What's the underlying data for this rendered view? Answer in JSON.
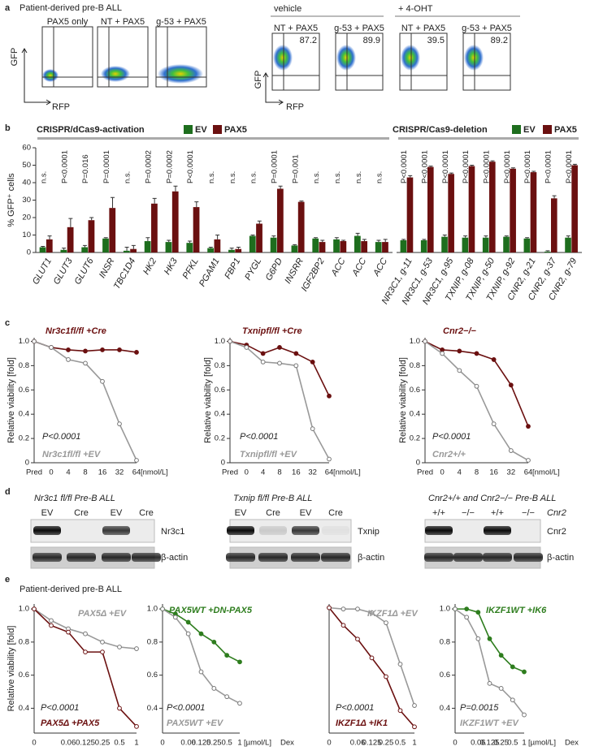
{
  "panel_a": {
    "label": "a",
    "title": "Patient-derived pre-B ALL",
    "y_axis": "GFP",
    "x_axis": "RFP",
    "left_plots": [
      "PAX5 only",
      "NT + PAX5",
      "g-53 + PAX5"
    ],
    "groups": [
      {
        "title": "vehicle",
        "plots": [
          {
            "title": "NT + PAX5",
            "value": 87.2
          },
          {
            "title": "g-53 + PAX5",
            "value": 89.9
          }
        ]
      },
      {
        "title": "+ 4-OHT",
        "plots": [
          {
            "title": "NT + PAX5",
            "value": 39.5
          },
          {
            "title": "g-53 + PAX5",
            "value": 89.2
          }
        ]
      }
    ]
  },
  "panel_labels": {
    "b": "b",
    "c": "c",
    "d": "d",
    "e": "e"
  },
  "chart_data": [
    {
      "type": "bar",
      "title": "CRISPR/dCas9-activation",
      "y_label": "% GFP⁺ cells",
      "categories": [
        "GLUT1",
        "GLUT3",
        "GLUT6",
        "INSR",
        "TBC1D4",
        "HK2",
        "HK3",
        "PFKL",
        "PGAM1",
        "FBP1",
        "PYGL",
        "G6PD",
        "INSRR",
        "IGF2BP2",
        "ACC",
        "ACC",
        "ACC"
      ],
      "annotations": [
        "n.s.",
        "P<0.0001",
        "P=0.016",
        "P=0.0001",
        "n.s.",
        "P=0.0002",
        "P=0.0002",
        "P<0.0001",
        "n.s.",
        "n.s.",
        "n.s.",
        "P=0.0001",
        "P=0.001",
        "n.s.",
        "n.s.",
        "n.s.",
        "n.s."
      ],
      "series": [
        {
          "name": "EV",
          "color": "#1e6e1e",
          "values": [
            3,
            1.5,
            3,
            8,
            1,
            6.5,
            6,
            5.5,
            2.5,
            1.5,
            9.5,
            8.5,
            4,
            8,
            7.5,
            9.5,
            6
          ],
          "errors": [
            0.5,
            1,
            1,
            0.5,
            2,
            2,
            1,
            1,
            0.5,
            1,
            0.5,
            1,
            0.5,
            0.5,
            1,
            1.5,
            1
          ]
        },
        {
          "name": "PAX5",
          "color": "#6b1010",
          "values": [
            7.5,
            14.5,
            18.5,
            25.5,
            2,
            28,
            35,
            26,
            7.5,
            2,
            16.5,
            36.5,
            29,
            6,
            6.5,
            6.5,
            6
          ],
          "errors": [
            2,
            5,
            1.5,
            6,
            2,
            3,
            3,
            3,
            2.5,
            1,
            1.5,
            1.5,
            0.5,
            1,
            0.5,
            1,
            1.5
          ]
        }
      ],
      "ylim": [
        0,
        60
      ],
      "yticks": [
        0,
        10,
        20,
        30,
        40,
        50,
        60
      ]
    },
    {
      "type": "bar",
      "title": "CRISPR/Cas9-deletion",
      "categories": [
        "NR3C1, g-11",
        "NR3C1, g-53",
        "NR3C1, g-95",
        "TXNIP, g-08",
        "TXNIP, g-50",
        "TXNIP, g-92",
        "CNR2, g-21",
        "CNR2, g-37",
        "CNR2, g-79"
      ],
      "annotations": [
        "P<0.0001",
        "P<0.0001",
        "P<0.0001",
        "P<0.0001",
        "P<0.0001",
        "P<0.0001",
        "P<0.0001",
        "P<0.0001",
        "P<0.0001"
      ],
      "series": [
        {
          "name": "EV",
          "color": "#1e6e1e",
          "values": [
            7,
            7,
            9,
            8.5,
            8.5,
            9,
            8,
            0.5,
            8.5
          ],
          "errors": [
            0.5,
            0.5,
            1,
            1,
            1,
            0.5,
            0.5,
            0.5,
            1
          ]
        },
        {
          "name": "PAX5",
          "color": "#6b1010",
          "values": [
            43,
            49,
            45,
            49.5,
            52,
            48,
            46,
            31,
            50
          ],
          "errors": [
            1,
            0.5,
            0.5,
            0.5,
            0.5,
            0.5,
            0.5,
            1.5,
            0.5
          ]
        }
      ],
      "ylim": [
        0,
        60
      ]
    },
    {
      "type": "line",
      "y_label": "Relative viability [fold]",
      "annotation": "P<0.0001",
      "x_unit": "[nmol/L]",
      "categories": [
        "Pred",
        "0",
        "4",
        "8",
        "16",
        "32",
        "64"
      ],
      "series": [
        {
          "name": "Nr3c1fl/fl +Cre",
          "color": "#6b1010",
          "values": [
            1.0,
            0.95,
            0.93,
            0.92,
            0.93,
            0.93,
            0.91
          ]
        },
        {
          "name": "Nr3c1fl/fl +EV",
          "color": "#999999",
          "values": [
            1.0,
            0.95,
            0.85,
            0.82,
            0.67,
            0.32,
            0.02
          ]
        }
      ],
      "ylim": [
        0,
        1.03
      ],
      "yticks": [
        0,
        0.2,
        0.4,
        0.6,
        0.8,
        {
          "value": 1,
          "label": "1.0"
        }
      ]
    },
    {
      "type": "line",
      "y_label": "Relative viability [fold]",
      "annotation": "P<0.0001",
      "x_unit": "[nmol/L]",
      "categories": [
        "Pred",
        "0",
        "4",
        "8",
        "16",
        "32",
        "64"
      ],
      "series": [
        {
          "name": "Txnipfl/fl +Cre",
          "color": "#6b1010",
          "values": [
            1.0,
            0.97,
            0.9,
            0.95,
            0.9,
            0.83,
            0.55
          ]
        },
        {
          "name": "Txnipfl/fl +EV",
          "color": "#999999",
          "values": [
            1.0,
            0.95,
            0.83,
            0.82,
            0.8,
            0.28,
            0.03
          ]
        }
      ],
      "ylim": [
        0,
        1.03
      ],
      "yticks": [
        0,
        0.2,
        0.4,
        0.6,
        0.8,
        {
          "value": 1,
          "label": "1.0"
        }
      ]
    },
    {
      "type": "line",
      "y_label": "Relative viability [fold]",
      "annotation": "P<0.0001",
      "x_unit": "[nmol/L]",
      "categories": [
        "Pred",
        "0",
        "4",
        "8",
        "16",
        "32",
        "64"
      ],
      "series": [
        {
          "name": "Cnr2−/−",
          "color": "#6b1010",
          "values": [
            1.0,
            0.93,
            0.92,
            0.9,
            0.85,
            0.64,
            0.3
          ]
        },
        {
          "name": "Cnr2+/+",
          "color": "#999999",
          "values": [
            1.0,
            0.9,
            0.76,
            0.63,
            0.32,
            0.1,
            0.02
          ]
        }
      ],
      "ylim": [
        0,
        1.03
      ],
      "yticks": [
        0,
        0.2,
        0.4,
        0.6,
        0.8,
        {
          "value": 1,
          "label": "1.0"
        }
      ]
    },
    {
      "type": "line",
      "y_label": "Relative viability [fold]",
      "annotation": "P<0.0001",
      "categories": [
        "0",
        null,
        "0.06",
        "0.125",
        "0.25",
        "0.5",
        "1"
      ],
      "series": [
        {
          "name": "PAX5Δ +EV",
          "color": "#999999",
          "values": [
            1.0,
            0.93,
            0.88,
            0.85,
            0.8,
            0.77,
            0.76
          ]
        },
        {
          "name": "PAX5Δ +PAX5",
          "color": "#6b1010",
          "values": [
            1.0,
            0.9,
            0.86,
            0.74,
            0.74,
            0.4,
            0.29
          ]
        }
      ],
      "ylim": [
        0.25,
        1.03
      ],
      "yticks": [
        0.4,
        0.6,
        0.8,
        {
          "value": 1,
          "label": "1.0"
        }
      ]
    },
    {
      "type": "line",
      "annotation": "P<0.0001",
      "x_unit": "[µmol/L]",
      "x_label": "Dex",
      "categories": [
        "0",
        null,
        "0.06",
        "0.125",
        "0.25",
        "0.5",
        "1"
      ],
      "series": [
        {
          "name": "PAX5WT +DN-PAX5",
          "color": "#2e7d1e",
          "values": [
            1.0,
            0.97,
            0.92,
            0.85,
            0.8,
            0.72,
            0.68
          ]
        },
        {
          "name": "PAX5WT +EV",
          "color": "#999999",
          "values": [
            1.0,
            0.95,
            0.85,
            0.62,
            0.52,
            0.47,
            0.43
          ]
        }
      ],
      "ylim": [
        0.25,
        1.03
      ],
      "yticks": [
        0.4,
        0.6,
        0.8,
        {
          "value": 1,
          "label": "1.0"
        }
      ]
    },
    {
      "type": "line",
      "annotation": "P<0.0001",
      "categories": [
        "0",
        null,
        "0.06",
        "0.125",
        "0.25",
        "0.5",
        "1"
      ],
      "series": [
        {
          "name": "IKZF1Δ +EV",
          "color": "#999999",
          "values": [
            1.0,
            0.99,
            0.99,
            0.96,
            0.88,
            0.55,
            0.22
          ]
        },
        {
          "name": "IKZF1Δ +IK1",
          "color": "#6b1010",
          "values": [
            1.0,
            0.86,
            0.75,
            0.6,
            0.45,
            0.18,
            0.05
          ]
        }
      ],
      "ylim": [
        0,
        1.03
      ]
    },
    {
      "type": "line",
      "annotation": "P=0.0015",
      "x_unit": "[µmol/L]",
      "x_label": "Dex",
      "categories": [
        "0",
        null,
        "0.06",
        "0.125",
        "0.25",
        "0.5",
        "1"
      ],
      "series": [
        {
          "name": "IKZF1WT +IK6",
          "color": "#2e7d1e",
          "values": [
            1.0,
            1.0,
            0.98,
            0.82,
            0.72,
            0.65,
            0.62
          ]
        },
        {
          "name": "IKZF1WT +EV",
          "color": "#999999",
          "values": [
            1.0,
            0.95,
            0.82,
            0.55,
            0.52,
            0.45,
            0.36
          ]
        }
      ],
      "ylim": [
        0.25,
        1.03
      ],
      "yticks": [
        0.4,
        0.6,
        0.8,
        {
          "value": 1,
          "label": "1.0"
        }
      ]
    }
  ],
  "panel_d": {
    "blots": [
      {
        "title": "Nr3c1 fl/fl Pre-B ALL",
        "lanes": [
          "EV",
          "Cre",
          "EV",
          "Cre"
        ],
        "proteins": [
          "Nr3c1",
          "β-actin"
        ]
      },
      {
        "title": "Txnip fl/fl Pre-B ALL",
        "lanes": [
          "EV",
          "Cre",
          "EV",
          "Cre"
        ],
        "proteins": [
          "Txnip",
          "β-actin"
        ]
      },
      {
        "title": "Cnr2+/+ and Cnr2−/− Pre-B ALL",
        "lanes": [
          "+/+",
          "−/−",
          "+/+",
          "−/−"
        ],
        "lane_header": "Cnr2",
        "proteins": [
          "Cnr2",
          "β-actin"
        ]
      }
    ]
  },
  "panel_e_title": "Patient-derived pre-B ALL"
}
